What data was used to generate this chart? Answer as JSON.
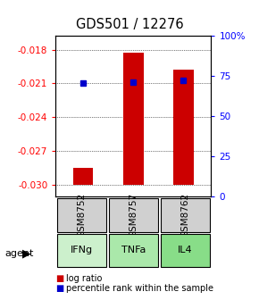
{
  "title": "GDS501 / 12276",
  "samples": [
    "GSM8752",
    "GSM8757",
    "GSM8762"
  ],
  "agents": [
    "IFNg",
    "TNFa",
    "IL4"
  ],
  "log_ratios": [
    -0.0285,
    -0.0183,
    -0.0198
  ],
  "percentile_ranks": [
    70.5,
    71.5,
    72.5
  ],
  "ylim_left": [
    -0.031,
    -0.0168
  ],
  "ylim_right": [
    0,
    100
  ],
  "yticks_left": [
    -0.03,
    -0.027,
    -0.024,
    -0.021,
    -0.018
  ],
  "yticks_right": [
    0,
    25,
    50,
    75,
    100
  ],
  "bar_color": "#cc0000",
  "dot_color": "#0000cc",
  "gsm_bg": "#d0d0d0",
  "agent_colors": [
    "#ccf0cc",
    "#aae8aa",
    "#88dd88"
  ],
  "baseline": -0.03,
  "legend_red": "log ratio",
  "legend_blue": "percentile rank within the sample"
}
